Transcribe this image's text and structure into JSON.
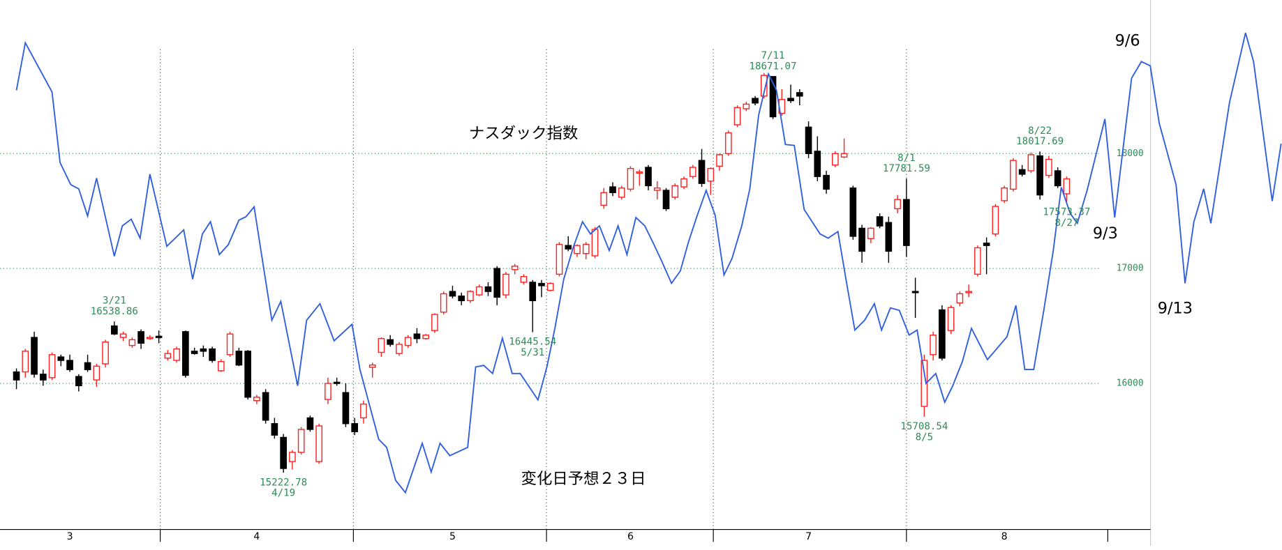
{
  "chart_data": {
    "type": "candlestick",
    "title": "ナスダック指数",
    "note": "変化日予想２３日",
    "line_labels": [
      "9/6",
      "9/3",
      "9/13"
    ],
    "up_color": "#ff2020",
    "down_color": "#000000",
    "grid_color": "#2e9b5a",
    "ylim": [
      14729,
      19336
    ],
    "yticks": [
      16000,
      17000,
      18000
    ],
    "grid": true,
    "categories": [
      null,
      null,
      null,
      null,
      null,
      null,
      "3",
      null,
      null,
      null,
      null,
      null,
      null,
      null,
      null,
      null,
      null,
      null,
      null,
      null,
      null,
      null,
      null,
      null,
      null,
      null,
      null,
      "4",
      null,
      null,
      null,
      null,
      null,
      null,
      null,
      null,
      null,
      null,
      null,
      null,
      null,
      null,
      null,
      null,
      null,
      null,
      null,
      null,
      null,
      "5",
      null,
      null,
      null,
      null,
      null,
      null,
      null,
      null,
      null,
      null,
      null,
      null,
      null,
      null,
      null,
      null,
      null,
      null,
      null,
      "6",
      null,
      null,
      null,
      null,
      null,
      null,
      null,
      null,
      null,
      null,
      null,
      null,
      null,
      null,
      null,
      null,
      null,
      null,
      null,
      "7",
      null,
      null,
      null,
      null,
      null,
      null,
      null,
      null,
      null,
      null,
      null,
      null,
      null,
      null,
      null,
      null,
      null,
      null,
      null,
      null,
      null,
      "8",
      null,
      null,
      null,
      null,
      null,
      null,
      null
    ],
    "candles": [
      [
        16100,
        16130,
        15950,
        16030
      ],
      [
        16100,
        16300,
        16050,
        16280
      ],
      [
        16400,
        16450,
        16050,
        16080
      ],
      [
        16080,
        16120,
        15980,
        16030
      ],
      [
        16050,
        16270,
        16030,
        16250
      ],
      [
        16230,
        16250,
        16150,
        16200
      ],
      [
        16200,
        16250,
        16100,
        16120
      ],
      [
        16060,
        16080,
        15930,
        15980
      ],
      [
        16180,
        16250,
        16100,
        16120
      ],
      [
        16030,
        16170,
        15970,
        16150
      ],
      [
        16170,
        16380,
        16140,
        16360
      ],
      [
        16500,
        16538.86,
        16420,
        16430
      ],
      [
        16400,
        16450,
        16370,
        16430
      ],
      [
        16330,
        16400,
        16310,
        16380
      ],
      [
        16450,
        16470,
        16300,
        16350
      ],
      [
        16390,
        16420,
        16380,
        16400
      ],
      [
        16410,
        16460,
        16350,
        16400
      ],
      [
        16220,
        16290,
        16200,
        16260
      ],
      [
        16200,
        16320,
        16180,
        16300
      ],
      [
        16450,
        16460,
        16050,
        16070
      ],
      [
        16280,
        16310,
        16250,
        16260
      ],
      [
        16300,
        16330,
        16230,
        16280
      ],
      [
        16300,
        16320,
        16180,
        16200
      ],
      [
        16110,
        16210,
        16100,
        16190
      ],
      [
        16250,
        16450,
        16230,
        16430
      ],
      [
        16280,
        16310,
        16150,
        16160
      ],
      [
        16280,
        16290,
        15860,
        15880
      ],
      [
        15850,
        15900,
        15820,
        15880
      ],
      [
        15920,
        15950,
        15650,
        15680
      ],
      [
        15650,
        15700,
        15520,
        15550
      ],
      [
        15530,
        15560,
        15222.78,
        15260
      ],
      [
        15320,
        15420,
        15250,
        15400
      ],
      [
        15400,
        15620,
        15380,
        15600
      ],
      [
        15700,
        15720,
        15580,
        15600
      ],
      [
        15320,
        15650,
        15300,
        15630
      ],
      [
        15860,
        16050,
        15820,
        16000
      ],
      [
        16010,
        16050,
        15980,
        16000
      ],
      [
        15920,
        16000,
        15620,
        15650
      ],
      [
        15650,
        15700,
        15550,
        15580
      ],
      [
        15700,
        15850,
        15650,
        15820
      ],
      [
        16140,
        16180,
        16050,
        16160
      ],
      [
        16270,
        16400,
        16230,
        16390
      ],
      [
        16380,
        16420,
        16320,
        16340
      ],
      [
        16260,
        16360,
        16240,
        16340
      ],
      [
        16330,
        16420,
        16310,
        16400
      ],
      [
        16430,
        16480,
        16350,
        16390
      ],
      [
        16390,
        16430,
        16380,
        16420
      ],
      [
        16460,
        16610,
        16440,
        16600
      ],
      [
        16620,
        16800,
        16600,
        16780
      ],
      [
        16800,
        16850,
        16740,
        16760
      ],
      [
        16760,
        16790,
        16680,
        16720
      ],
      [
        16720,
        16810,
        16700,
        16800
      ],
      [
        16770,
        16860,
        16760,
        16840
      ],
      [
        16840,
        16880,
        16760,
        16800
      ],
      [
        17000,
        17020,
        16680,
        16750
      ],
      [
        16770,
        16970,
        16740,
        16950
      ],
      [
        16990,
        17040,
        16950,
        17020
      ],
      [
        16880,
        16950,
        16860,
        16930
      ],
      [
        16880,
        16900,
        16445.54,
        16720
      ],
      [
        16870,
        16900,
        16750,
        16850
      ],
      [
        16810,
        16880,
        16800,
        16870
      ],
      [
        16950,
        17230,
        16930,
        17210
      ],
      [
        17200,
        17280,
        17150,
        17170
      ],
      [
        17130,
        17210,
        17100,
        17200
      ],
      [
        17130,
        17230,
        17080,
        17210
      ],
      [
        17110,
        17360,
        17090,
        17340
      ],
      [
        17550,
        17700,
        17520,
        17660
      ],
      [
        17710,
        17750,
        17630,
        17660
      ],
      [
        17620,
        17720,
        17600,
        17700
      ],
      [
        17690,
        17890,
        17670,
        17870
      ],
      [
        17830,
        17860,
        17720,
        17840
      ],
      [
        17880,
        17900,
        17680,
        17720
      ],
      [
        17680,
        17760,
        17600,
        17700
      ],
      [
        17680,
        17700,
        17500,
        17520
      ],
      [
        17620,
        17740,
        17600,
        17720
      ],
      [
        17710,
        17800,
        17690,
        17780
      ],
      [
        17800,
        17900,
        17780,
        17880
      ],
      [
        17940,
        18040,
        17710,
        17740
      ],
      [
        17760,
        17880,
        17640,
        17870
      ],
      [
        17890,
        18000,
        17850,
        17990
      ],
      [
        18000,
        18200,
        17980,
        18180
      ],
      [
        18250,
        18420,
        18230,
        18400
      ],
      [
        18390,
        18450,
        18370,
        18430
      ],
      [
        18480,
        18500,
        18420,
        18440
      ],
      [
        18500,
        18700,
        18480,
        18680
      ],
      [
        18670,
        18671.07,
        18300,
        18320
      ],
      [
        18350,
        18560,
        18330,
        18470
      ],
      [
        18480,
        18600,
        18440,
        18460
      ],
      [
        18530,
        18560,
        18420,
        18500
      ],
      [
        18230,
        18280,
        17960,
        18000
      ],
      [
        18020,
        18150,
        17760,
        17800
      ],
      [
        17810,
        17850,
        17650,
        17690
      ],
      [
        17900,
        18020,
        17880,
        18000
      ],
      [
        17970,
        18130,
        17960,
        18000
      ],
      [
        17700,
        17720,
        17250,
        17280
      ],
      [
        17350,
        17380,
        17050,
        17150
      ],
      [
        17260,
        17360,
        17220,
        17350
      ],
      [
        17450,
        17480,
        17350,
        17370
      ],
      [
        17400,
        17450,
        17050,
        17150
      ],
      [
        17520,
        17640,
        17480,
        17600
      ],
      [
        17600,
        17781.59,
        17100,
        17200
      ],
      [
        16800,
        16920,
        16570,
        16790
      ],
      [
        15800,
        16250,
        15708.54,
        16200
      ],
      [
        16250,
        16450,
        16200,
        16420
      ],
      [
        16640,
        16680,
        16200,
        16220
      ],
      [
        16460,
        16680,
        16430,
        16660
      ],
      [
        16700,
        16800,
        16670,
        16780
      ],
      [
        16790,
        16860,
        16750,
        16800
      ],
      [
        16950,
        17200,
        16930,
        17180
      ],
      [
        17220,
        17270,
        16950,
        17200
      ],
      [
        17300,
        17560,
        17280,
        17540
      ],
      [
        17590,
        17720,
        17570,
        17700
      ],
      [
        17690,
        17960,
        17670,
        17940
      ],
      [
        17860,
        17900,
        17800,
        17820
      ],
      [
        17850,
        18010,
        17830,
        17990
      ],
      [
        17980,
        18017.69,
        17600,
        17640
      ],
      [
        17810,
        17980,
        17790,
        17950
      ],
      [
        17850,
        17880,
        17700,
        17720
      ],
      [
        17650,
        17800,
        17573.37,
        17780
      ]
    ],
    "annotations": [
      {
        "date": "3/21",
        "value": 16538.86
      },
      {
        "date": "4/19",
        "value": 15222.78
      },
      {
        "date": "5/31",
        "value": 16445.54
      },
      {
        "date": "7/11",
        "value": 18671.07
      },
      {
        "date": "8/1",
        "value": 17781.59
      },
      {
        "date": "8/5",
        "value": 15708.54
      },
      {
        "date": "8/22",
        "value": 18017.69
      },
      {
        "date": "8/27",
        "value": 17573.37
      }
    ],
    "forecast": {
      "color": "#2f5fe0",
      "x": [
        0,
        1.0,
        4.0,
        4.9,
        6.1,
        7.0,
        8.0,
        9.0,
        11.0,
        11.9,
        12.9,
        13.9,
        15.0,
        16.9,
        18.8,
        19.8,
        20.9,
        21.8,
        22.8,
        23.8,
        25.0,
        25.8,
        26.7,
        28.7,
        29.7,
        31.6,
        32.6,
        34.1,
        35.7,
        37.7,
        38.6,
        40.7,
        41.6,
        42.6,
        43.7,
        45.6,
        46.6,
        47.6,
        48.7,
        50.7,
        51.6,
        52.5,
        53.5,
        54.6,
        55.7,
        56.6,
        58.6,
        59.6,
        60.5,
        61.5,
        62.6,
        63.6,
        64.5,
        65.5,
        66.6,
        67.6,
        68.6,
        69.6,
        70.6,
        71.6,
        72.5,
        73.6,
        74.6,
        75.5,
        76.5,
        77.5,
        78.5,
        79.5,
        80.4,
        81.5,
        82.4,
        83.4,
        84.5,
        85.4,
        86.4,
        87.4,
        88.5,
        90.3,
        91.2,
        92.3,
        93.2,
        94.2,
        95.3,
        96.4,
        97.2,
        98.2,
        99.2,
        100.3,
        101.2,
        102.2,
        103.3,
        104.3,
        105.2,
        106.3,
        107.3,
        109.1,
        111.3,
        112.3,
        113.3,
        114.3,
        115.4,
        116.5,
        117.4,
        118.4,
        119.2,
        120.3,
        122.3,
        123.4,
        125.3,
        126.4,
        127.4,
        128.4,
        130.3,
        131.3,
        132.3,
        133.4,
        134.2,
        136.3,
        138.1,
        139.0,
        141.1,
        142.1
      ],
      "values": [
        18550,
        18964,
        18536,
        17921,
        17729,
        17693,
        17457,
        17786,
        17107,
        17371,
        17429,
        17264,
        17821,
        17193,
        17336,
        16907,
        17300,
        17407,
        17121,
        17207,
        17421,
        17450,
        17536,
        16550,
        16714,
        15979,
        16550,
        16693,
        16371,
        16514,
        16121,
        15514,
        15443,
        15157,
        15050,
        15479,
        15229,
        15479,
        15371,
        15443,
        16143,
        16157,
        16086,
        16393,
        16086,
        16086,
        15857,
        16143,
        16479,
        16907,
        17193,
        17407,
        17300,
        17371,
        17157,
        17371,
        17121,
        17443,
        17371,
        17214,
        17064,
        16871,
        16979,
        17229,
        17464,
        17679,
        17464,
        16943,
        17086,
        17371,
        17693,
        18336,
        18693,
        18550,
        18079,
        18071,
        17514,
        17300,
        17264,
        17321,
        16907,
        16464,
        16550,
        16693,
        16464,
        16657,
        16636,
        16421,
        16464,
        16000,
        16086,
        15836,
        15979,
        16193,
        16479,
        16207,
        16407,
        16679,
        16121,
        16121,
        16621,
        17157,
        17707,
        17479,
        17393,
        17679,
        18300,
        17443,
        18657,
        18800,
        18764,
        18264,
        17729,
        16871,
        17407,
        17693,
        17393,
        18443,
        19050,
        18800,
        17586,
        18086
      ]
    }
  }
}
